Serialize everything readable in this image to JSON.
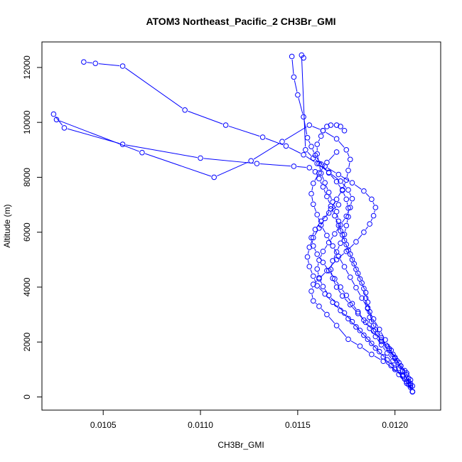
{
  "chart_data": {
    "type": "line",
    "title": "ATOM3 Northeast_Pacific_2 CH3Br_GMI",
    "xlabel": "CH3Br_GMI",
    "ylabel": "Altitude (m)",
    "xlim": [
      0.010185,
      0.012235
    ],
    "ylim": [
      -480,
      12930
    ],
    "x_ticks": [
      0.0105,
      0.011,
      0.0115,
      0.012
    ],
    "x_tick_labels": [
      "0.0105",
      "0.0110",
      "0.0115",
      "0.0120"
    ],
    "y_ticks": [
      0,
      2000,
      4000,
      6000,
      8000,
      10000,
      12000
    ],
    "y_tick_labels": [
      "0",
      "2000",
      "4000",
      "6000",
      "8000",
      "10000",
      "12000"
    ],
    "grid": false,
    "legend": "none",
    "series_color": "#0000ff",
    "marker": "open-circle",
    "series": [
      {
        "x": [
          0.01209,
          0.01209,
          0.01208,
          0.01206,
          0.01203,
          0.012,
          0.01197,
          0.01193,
          0.01191,
          0.01189,
          0.01187,
          0.01186,
          0.01185,
          0.01184,
          0.01182,
          0.0118,
          0.01178,
          0.01176,
          0.01174,
          0.01172,
          0.01171,
          0.0117,
          0.01168,
          0.01166,
          0.01164,
          0.01162,
          0.01161,
          0.0116,
          0.0116,
          0.01162,
          0.01163,
          0.01165,
          0.01167,
          0.0117,
          0.01172,
          0.01174
        ],
        "y": [
          190,
          400,
          620,
          870,
          1130,
          1400,
          1700,
          2020,
          2300,
          2600,
          2900,
          3250,
          3600,
          3950,
          4300,
          4650,
          5000,
          5350,
          5700,
          6050,
          6400,
          6750,
          7100,
          7450,
          7800,
          8150,
          8500,
          8850,
          9200,
          9500,
          9700,
          9850,
          9900,
          9900,
          9850,
          9700
        ]
      },
      {
        "x": [
          0.01209,
          0.01208,
          0.01207,
          0.01205,
          0.01202,
          0.01199,
          0.01196,
          0.01193,
          0.0119,
          0.01188,
          0.01187,
          0.01186,
          0.01185,
          0.01183,
          0.01181,
          0.01179,
          0.01177,
          0.01175,
          0.01173,
          0.01171,
          0.01169,
          0.01167,
          0.01165,
          0.01163,
          0.01161,
          0.01159,
          0.01156,
          0.01148,
          0.01129,
          0.011,
          0.0106,
          0.0103,
          0.010245
        ],
        "y": [
          190,
          420,
          680,
          960,
          1250,
          1550,
          1850,
          2150,
          2450,
          2750,
          3100,
          3450,
          3800,
          4150,
          4500,
          4850,
          5200,
          5550,
          5900,
          6250,
          6600,
          6950,
          7300,
          7650,
          7950,
          8200,
          8350,
          8400,
          8500,
          8700,
          9200,
          9800,
          10300
        ]
      },
      {
        "x": [
          0.01209,
          0.01207,
          0.01204,
          0.012,
          0.01196,
          0.01192,
          0.01188,
          0.01184,
          0.0118,
          0.01176,
          0.01172,
          0.01168,
          0.01164,
          0.0116,
          0.01158,
          0.01156,
          0.01155,
          0.01156,
          0.01158,
          0.01161,
          0.01164,
          0.01167,
          0.0117,
          0.01173,
          0.01175,
          0.01176,
          0.01177,
          0.01175,
          0.0117,
          0.01163,
          0.01156,
          0.01142,
          0.01126,
          0.01107,
          0.0107,
          0.01026
        ],
        "y": [
          190,
          450,
          750,
          1050,
          1350,
          1650,
          1950,
          2250,
          2550,
          2850,
          3150,
          3450,
          3750,
          4050,
          4400,
          4750,
          5100,
          5450,
          5800,
          6150,
          6500,
          6850,
          7200,
          7550,
          7900,
          8250,
          8650,
          9000,
          9400,
          9700,
          9900,
          9300,
          8600,
          8000,
          8900,
          10100
        ]
      },
      {
        "x": [
          0.01209,
          0.01206,
          0.01202,
          0.01198,
          0.01194,
          0.0119,
          0.01186,
          0.01182,
          0.01178,
          0.01174,
          0.0117,
          0.01166,
          0.01163,
          0.01161,
          0.0116,
          0.01161,
          0.01163,
          0.01166,
          0.01169,
          0.01172,
          0.01175,
          0.01177,
          0.01178,
          0.01176,
          0.01172,
          0.01166,
          0.0116,
          0.01153,
          0.01144,
          0.01132,
          0.01113,
          0.01092,
          0.0106,
          0.01046,
          0.0104
        ],
        "y": [
          190,
          500,
          820,
          1140,
          1460,
          1780,
          2100,
          2420,
          2740,
          3060,
          3380,
          3700,
          4020,
          4340,
          4660,
          4980,
          5300,
          5620,
          5940,
          6260,
          6580,
          6900,
          7220,
          7540,
          7860,
          8180,
          8500,
          8820,
          9140,
          9460,
          9900,
          10450,
          12050,
          12150,
          12200
        ]
      },
      {
        "x": [
          0.01209,
          0.01208,
          0.01206,
          0.01203,
          0.012,
          0.01197,
          0.01193,
          0.01189,
          0.01185,
          0.01181,
          0.01177,
          0.01173,
          0.0117,
          0.01168,
          0.01167,
          0.01168,
          0.0117,
          0.01172,
          0.01174,
          0.01175,
          0.01176,
          0.01176,
          0.01175,
          0.01173,
          0.0117,
          0.01166,
          0.01162,
          0.01159,
          0.01157,
          0.01155,
          0.01153,
          0.0115,
          0.01148,
          0.01147
        ],
        "y": [
          190,
          480,
          800,
          1120,
          1440,
          1760,
          2080,
          2400,
          2720,
          3040,
          3360,
          3680,
          4000,
          4320,
          4640,
          4960,
          5280,
          5600,
          5920,
          6240,
          6560,
          6880,
          7200,
          7520,
          7840,
          8160,
          8480,
          8800,
          9120,
          9440,
          10200,
          11000,
          11650,
          12400
        ]
      },
      {
        "x": [
          0.01209,
          0.01205,
          0.012,
          0.01194,
          0.01188,
          0.01182,
          0.01176,
          0.0117,
          0.01165,
          0.01161,
          0.01158,
          0.01157,
          0.01158,
          0.01161,
          0.01165,
          0.0117,
          0.01175,
          0.0118,
          0.01184,
          0.01187,
          0.01189,
          0.0119,
          0.01188,
          0.01184,
          0.01178,
          0.01171,
          0.01164,
          0.01158,
          0.01154,
          0.01152,
          0.01153
        ],
        "y": [
          190,
          650,
          1000,
          1300,
          1550,
          1850,
          2100,
          2600,
          3000,
          3300,
          3500,
          3850,
          4100,
          4300,
          4600,
          5000,
          5300,
          5650,
          6000,
          6300,
          6600,
          6900,
          7200,
          7500,
          7800,
          8100,
          8400,
          8700,
          9000,
          12450,
          12350
        ]
      },
      {
        "x": [
          0.01209,
          0.01207,
          0.01204,
          0.01201,
          0.01198,
          0.01195,
          0.01192,
          0.01189,
          0.01186,
          0.01183,
          0.0118,
          0.01177,
          0.01174,
          0.01171,
          0.01168,
          0.01165,
          0.01162,
          0.0116,
          0.01158,
          0.01157,
          0.01158,
          0.01161,
          0.01165,
          0.0117
        ],
        "y": [
          190,
          560,
          940,
          1320,
          1700,
          2080,
          2460,
          2840,
          3220,
          3600,
          3980,
          4360,
          4740,
          5120,
          5500,
          5880,
          6260,
          6640,
          7020,
          7400,
          7780,
          8160,
          8540,
          8920
        ]
      },
      {
        "x": [
          0.01209,
          0.01208,
          0.01206,
          0.01204,
          0.01202,
          0.01199,
          0.01196,
          0.01193,
          0.0119,
          0.01187,
          0.01184,
          0.01181,
          0.01178,
          0.01175,
          0.01172,
          0.01169,
          0.01166,
          0.01163,
          0.0116,
          0.01158,
          0.01157,
          0.01159,
          0.01162,
          0.01166,
          0.01171
        ],
        "y": [
          190,
          350,
          560,
          800,
          1050,
          1320,
          1600,
          1900,
          2200,
          2500,
          2800,
          3100,
          3400,
          3700,
          4000,
          4300,
          4600,
          4900,
          5200,
          5500,
          5800,
          6100,
          6400,
          6700,
          7000
        ]
      }
    ]
  }
}
